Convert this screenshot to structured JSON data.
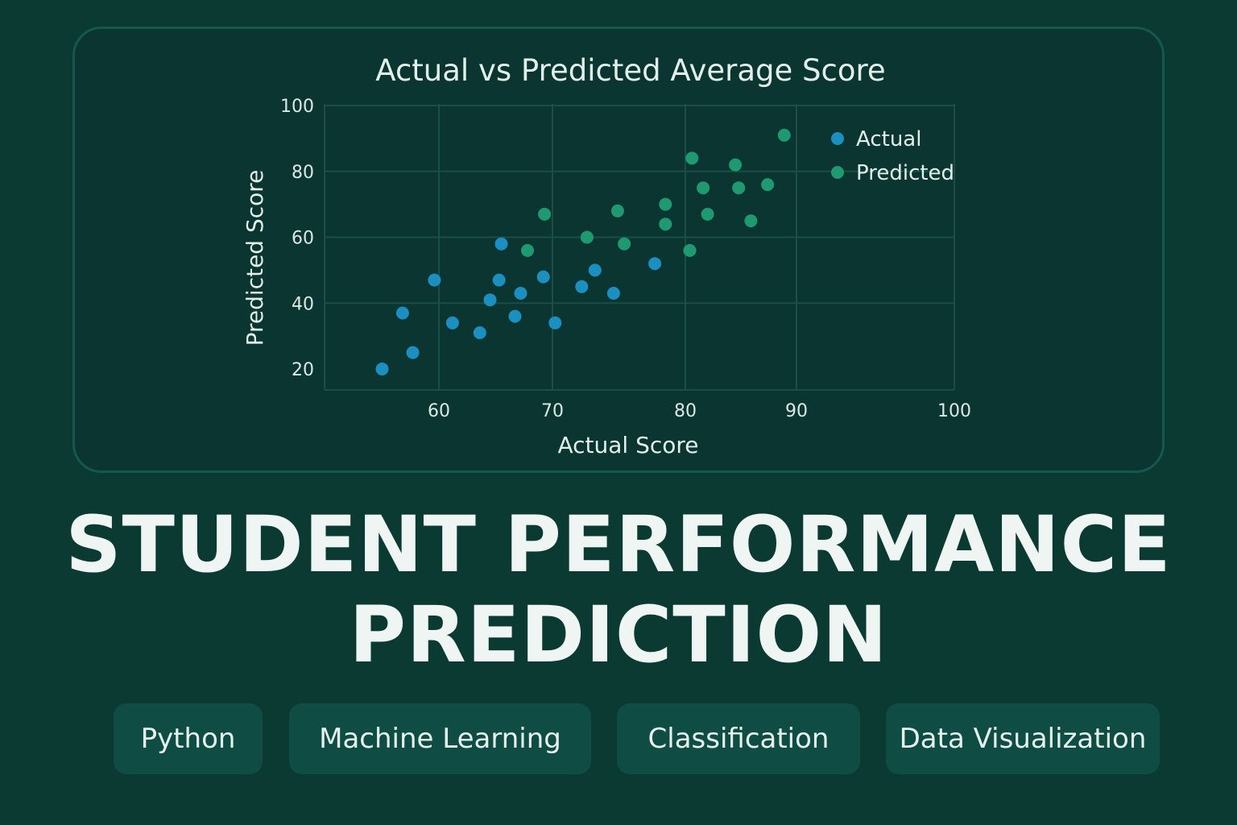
{
  "chart_data": {
    "type": "scatter",
    "title": "Actual vs Predicted Average Score",
    "xlabel": "Actual Score",
    "ylabel": "Predicted Score",
    "x_ticks": [
      60,
      70,
      80,
      90,
      100
    ],
    "y_ticks": [
      20,
      40,
      60,
      80,
      100
    ],
    "grid": true,
    "legend_position": "top-right",
    "series": [
      {
        "name": "Actual",
        "color": "#1b8fc0",
        "points": [
          [
            55,
            20
          ],
          [
            56.8,
            37
          ],
          [
            57.7,
            25
          ],
          [
            59.6,
            47
          ],
          [
            61.2,
            34
          ],
          [
            63.6,
            31
          ],
          [
            64.5,
            41
          ],
          [
            65.3,
            47
          ],
          [
            65.5,
            58
          ],
          [
            66.7,
            36
          ],
          [
            67.2,
            43
          ],
          [
            69.2,
            48
          ],
          [
            70.2,
            34
          ],
          [
            72.2,
            45
          ],
          [
            73.2,
            50
          ],
          [
            74.6,
            43
          ],
          [
            77.7,
            52
          ]
        ]
      },
      {
        "name": "Predicted",
        "color": "#1f9a70",
        "points": [
          [
            67.8,
            56
          ],
          [
            69.3,
            67
          ],
          [
            72.6,
            60
          ],
          [
            74.9,
            68
          ],
          [
            75.4,
            58
          ],
          [
            78.5,
            70
          ],
          [
            78.5,
            64
          ],
          [
            80.4,
            56
          ],
          [
            80.6,
            84
          ],
          [
            81.6,
            75
          ],
          [
            82,
            67
          ],
          [
            84.5,
            82
          ],
          [
            84.8,
            75
          ],
          [
            85.9,
            65
          ],
          [
            87.4,
            76
          ],
          [
            88.9,
            91
          ]
        ]
      }
    ]
  },
  "headline": {
    "line1": "STUDENT PERFORMANCE",
    "line2": "PREDICTION"
  },
  "tags": [
    "Python",
    "Machine Learning",
    "Classification",
    "Data Visualization"
  ]
}
